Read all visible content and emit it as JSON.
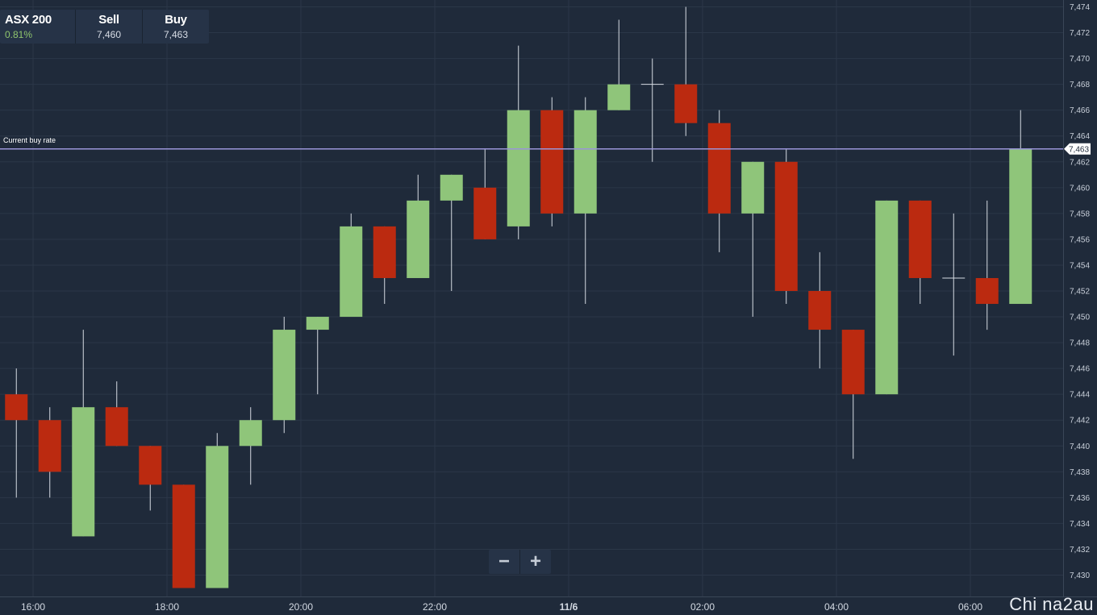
{
  "quote": {
    "instrument": "ASX 200",
    "change": "0.81%",
    "sell_label": "Sell",
    "sell_value": "7,460",
    "buy_label": "Buy",
    "buy_value": "7,463"
  },
  "zoom": {
    "minus": "−",
    "plus": "+"
  },
  "watermark": "Chi na2au",
  "colors": {
    "background": "#1f2a3a",
    "up": "#8fc57a",
    "down": "#bb2a10",
    "buy_line": "#9a95d8",
    "grid": "#2b3748"
  },
  "chart_data": {
    "type": "candlestick",
    "title": "",
    "ylim": [
      7429,
      7474
    ],
    "y_ticks": [
      7430,
      7432,
      7434,
      7436,
      7438,
      7440,
      7442,
      7444,
      7446,
      7448,
      7450,
      7452,
      7454,
      7456,
      7458,
      7460,
      7462,
      7464,
      7466,
      7468,
      7470,
      7472,
      7474
    ],
    "y_tick_labels": [
      "7,430",
      "7,432",
      "7,434",
      "7,436",
      "7,438",
      "7,440",
      "7,442",
      "7,444",
      "7,446",
      "7,448",
      "7,450",
      "7,452",
      "7,454",
      "7,456",
      "7,458",
      "7,460",
      "7,462",
      "7,464",
      "7,466",
      "7,468",
      "7,470",
      "7,472",
      "7,474"
    ],
    "x_ticks": [
      {
        "label": "16:00",
        "at": "16:00",
        "bold": false
      },
      {
        "label": "18:00",
        "at": "18:00",
        "bold": false
      },
      {
        "label": "20:00",
        "at": "20:00",
        "bold": false
      },
      {
        "label": "22:00",
        "at": "22:00",
        "bold": false
      },
      {
        "label": "11/6",
        "at": "00:00",
        "bold": true
      },
      {
        "label": "02:00",
        "at": "02:00",
        "bold": false
      },
      {
        "label": "04:00",
        "at": "04:00",
        "bold": false
      },
      {
        "label": "06:00",
        "at": "06:00",
        "bold": false
      }
    ],
    "grid": true,
    "current_buy_rate": {
      "label": "Current buy rate",
      "value": 7463,
      "value_label": "7,463"
    },
    "candles": [
      {
        "time": "15:45",
        "open": 7444,
        "high": 7446,
        "low": 7436,
        "close": 7442
      },
      {
        "time": "16:15",
        "open": 7442,
        "high": 7443,
        "low": 7436,
        "close": 7438
      },
      {
        "time": "16:45",
        "open": 7433,
        "high": 7449,
        "low": 7433,
        "close": 7443
      },
      {
        "time": "17:15",
        "open": 7443,
        "high": 7445,
        "low": 7440,
        "close": 7440
      },
      {
        "time": "17:45",
        "open": 7440,
        "high": 7440,
        "low": 7435,
        "close": 7437
      },
      {
        "time": "18:15",
        "open": 7437,
        "high": 7437,
        "low": 7429,
        "close": 7429
      },
      {
        "time": "18:45",
        "open": 7429,
        "high": 7441,
        "low": 7429,
        "close": 7440
      },
      {
        "time": "19:15",
        "open": 7440,
        "high": 7443,
        "low": 7437,
        "close": 7442
      },
      {
        "time": "19:45",
        "open": 7442,
        "high": 7450,
        "low": 7441,
        "close": 7449
      },
      {
        "time": "20:15",
        "open": 7449,
        "high": 7450,
        "low": 7444,
        "close": 7450
      },
      {
        "time": "20:45",
        "open": 7450,
        "high": 7458,
        "low": 7450,
        "close": 7457
      },
      {
        "time": "21:15",
        "open": 7457,
        "high": 7457,
        "low": 7451,
        "close": 7453
      },
      {
        "time": "21:45",
        "open": 7453,
        "high": 7461,
        "low": 7453,
        "close": 7459
      },
      {
        "time": "22:15",
        "open": 7459,
        "high": 7461,
        "low": 7452,
        "close": 7461
      },
      {
        "time": "22:45",
        "open": 7460,
        "high": 7463,
        "low": 7456,
        "close": 7456
      },
      {
        "time": "23:15",
        "open": 7457,
        "high": 7471,
        "low": 7456,
        "close": 7466
      },
      {
        "time": "23:45",
        "open": 7466,
        "high": 7467,
        "low": 7457,
        "close": 7458
      },
      {
        "time": "00:15",
        "open": 7458,
        "high": 7467,
        "low": 7451,
        "close": 7466
      },
      {
        "time": "00:45",
        "open": 7466,
        "high": 7473,
        "low": 7466,
        "close": 7468
      },
      {
        "time": "01:15",
        "open": 7468,
        "high": 7470,
        "low": 7462,
        "close": 7468
      },
      {
        "time": "01:45",
        "open": 7468,
        "high": 7474,
        "low": 7464,
        "close": 7465
      },
      {
        "time": "02:15",
        "open": 7465,
        "high": 7466,
        "low": 7455,
        "close": 7458
      },
      {
        "time": "02:45",
        "open": 7458,
        "high": 7462,
        "low": 7450,
        "close": 7462
      },
      {
        "time": "03:15",
        "open": 7462,
        "high": 7463,
        "low": 7451,
        "close": 7452
      },
      {
        "time": "03:45",
        "open": 7452,
        "high": 7455,
        "low": 7446,
        "close": 7449
      },
      {
        "time": "04:15",
        "open": 7449,
        "high": 7449,
        "low": 7439,
        "close": 7444
      },
      {
        "time": "04:45",
        "open": 7444,
        "high": 7459,
        "low": 7444,
        "close": 7459
      },
      {
        "time": "05:15",
        "open": 7459,
        "high": 7459,
        "low": 7451,
        "close": 7453
      },
      {
        "time": "05:45",
        "open": 7453,
        "high": 7458,
        "low": 7447,
        "close": 7453
      },
      {
        "time": "06:15",
        "open": 7453,
        "high": 7459,
        "low": 7449,
        "close": 7451
      },
      {
        "time": "06:45",
        "open": 7451,
        "high": 7466,
        "low": 7451,
        "close": 7463
      }
    ]
  }
}
